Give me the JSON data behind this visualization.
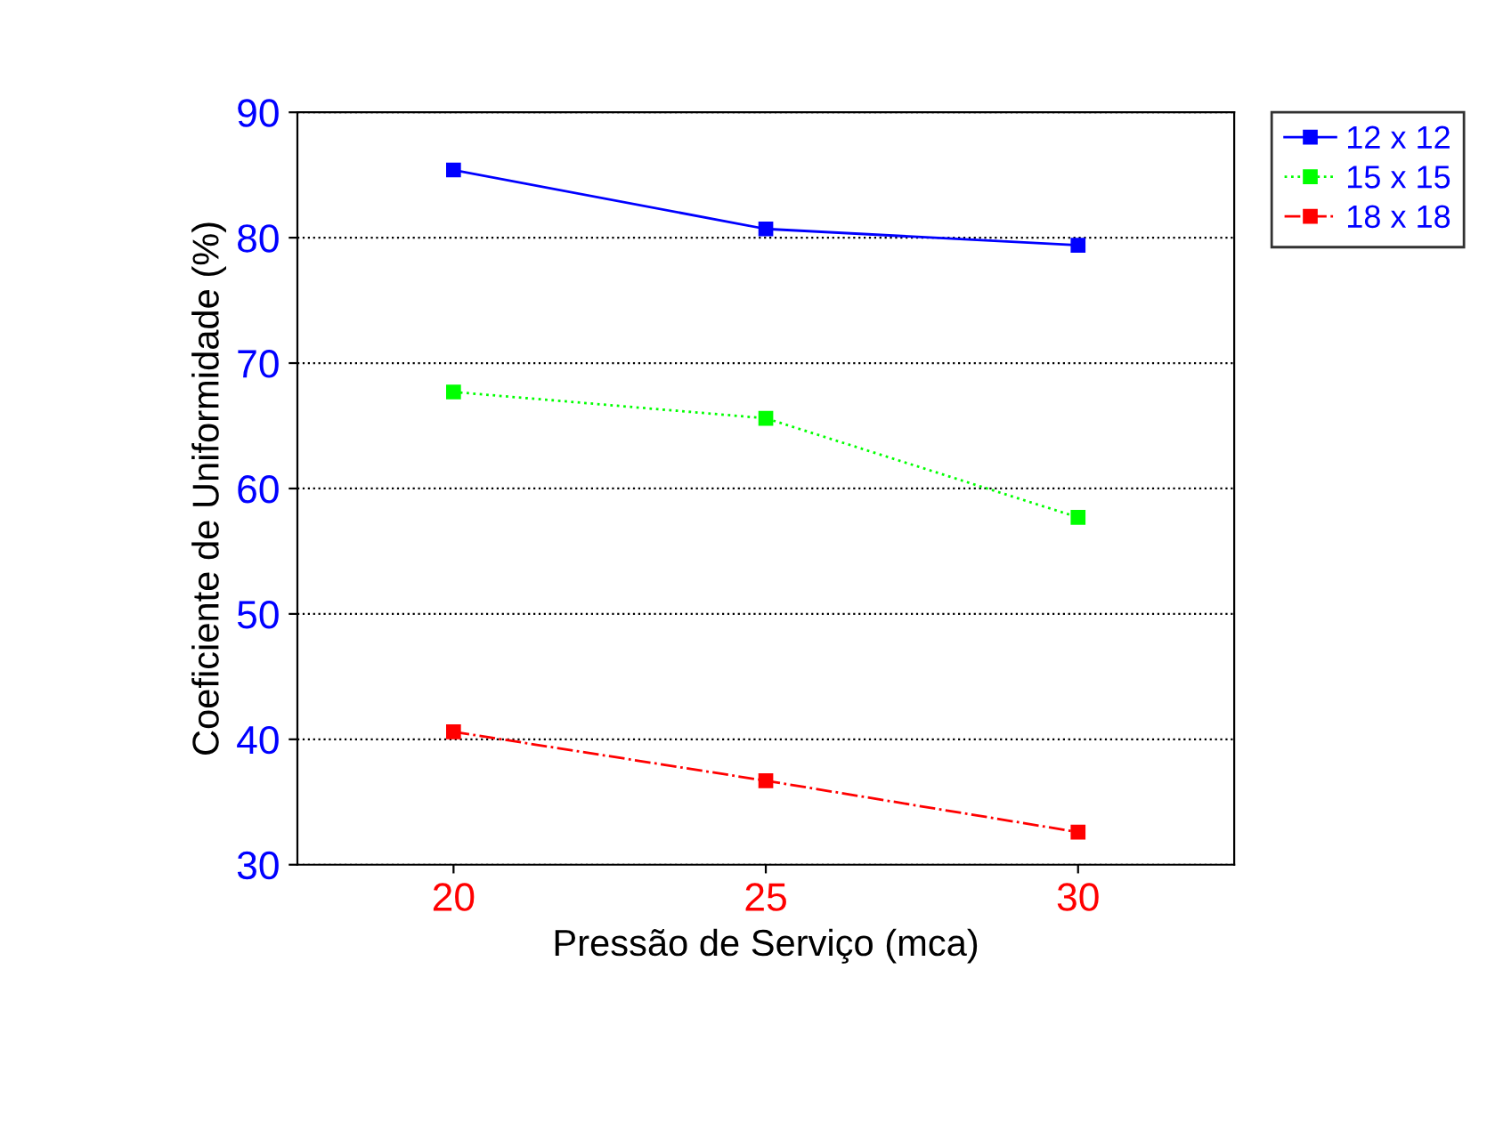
{
  "chart_data": {
    "type": "line",
    "xlabel": "Pressão de Serviço (mca)",
    "ylabel": "Coeficiente de Uniformidade (%)",
    "x": [
      20,
      25,
      30
    ],
    "series": [
      {
        "name": "12 x 12",
        "color": "#0000ff",
        "values": [
          85.4,
          80.7,
          79.4
        ],
        "line_style": "solid"
      },
      {
        "name": "15 x 15",
        "color": "#00ff00",
        "values": [
          67.7,
          65.6,
          57.7
        ],
        "line_style": "dotted"
      },
      {
        "name": "18 x 18",
        "color": "#ff0000",
        "values": [
          40.6,
          36.7,
          32.6
        ],
        "line_style": "dashed"
      }
    ],
    "xlim": [
      17.5,
      32.5
    ],
    "xticks": [
      20,
      25,
      30
    ],
    "ylim": [
      30,
      90
    ],
    "yticks": [
      30,
      40,
      50,
      60,
      70,
      80,
      90
    ],
    "grid": "y",
    "legend": "top right",
    "marker": "square"
  }
}
